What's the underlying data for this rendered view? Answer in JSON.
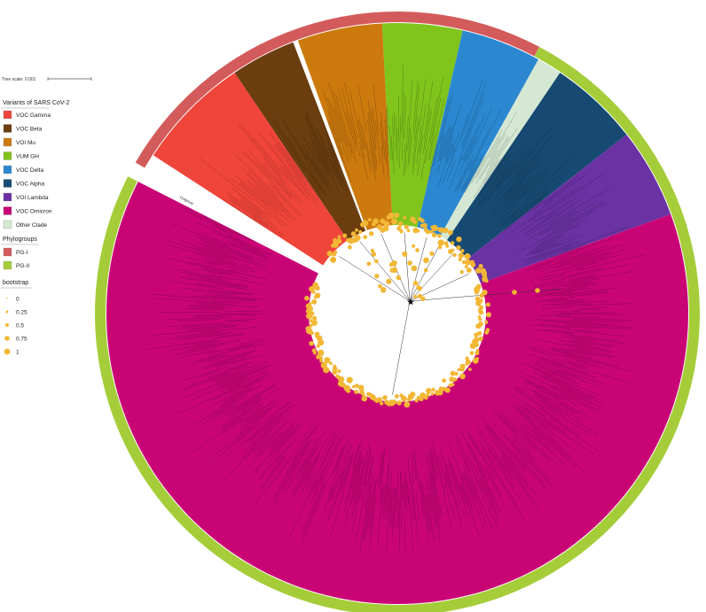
{
  "tree_scale": {
    "label": "Tree scale: 0.001"
  },
  "legend": {
    "variants": {
      "title": "Variants of SARS CoV-2",
      "items": [
        {
          "label": "VOC Gamma",
          "color": "#f0453a"
        },
        {
          "label": "VOC Beta",
          "color": "#6b3d0f"
        },
        {
          "label": "VOI Mu",
          "color": "#cc7a0e"
        },
        {
          "label": "VUM GH",
          "color": "#80c41c"
        },
        {
          "label": "VOC Delta",
          "color": "#2b88d0"
        },
        {
          "label": "VOC Alpha",
          "color": "#174a72"
        },
        {
          "label": "VOI Lambda",
          "color": "#6a32a3"
        },
        {
          "label": "VOC Omicron",
          "color": "#c90576"
        },
        {
          "label": "Other Clade",
          "color": "#d4e8d4"
        }
      ]
    },
    "phylogroups": {
      "title": "Phylogroups",
      "items": [
        {
          "label": "PG-I",
          "color": "#d45b5b"
        },
        {
          "label": "PG-II",
          "color": "#a5cd39"
        }
      ]
    },
    "bootstrap": {
      "title": "bootstrap",
      "color": "#f2b735",
      "items": [
        {
          "label": "0",
          "value": 0
        },
        {
          "label": "0.25",
          "value": 0.25
        },
        {
          "label": "0.5",
          "value": 0.5
        },
        {
          "label": "0.75",
          "value": 0.75
        },
        {
          "label": "1",
          "value": 1
        }
      ]
    }
  },
  "tree": {
    "outgroup_label": "Outgroup",
    "clades": [
      {
        "name": "VOC Gamma",
        "color": "#f0453a",
        "from_deg": -147,
        "to_deg": -124,
        "phylogroup": "PG-I"
      },
      {
        "name": "VOC Beta",
        "color": "#6b3d0f",
        "from_deg": -124,
        "to_deg": -111,
        "phylogroup": "PG-I"
      },
      {
        "name": "VOI Mu",
        "color": "#cc7a0e",
        "from_deg": -110,
        "to_deg": -93,
        "phylogroup": "PG-I"
      },
      {
        "name": "VUM GH",
        "color": "#80c41c",
        "from_deg": -93,
        "to_deg": -77,
        "phylogroup": "PG-I"
      },
      {
        "name": "VOC Delta",
        "color": "#2b88d0",
        "from_deg": -77,
        "to_deg": -61,
        "phylogroup": "PG-I"
      },
      {
        "name": "Other Clade",
        "color": "#d4e8d4",
        "from_deg": -61,
        "to_deg": -56,
        "phylogroup": "PG-II"
      },
      {
        "name": "VOC Alpha",
        "color": "#174a72",
        "from_deg": -56,
        "to_deg": -38,
        "phylogroup": "PG-II"
      },
      {
        "name": "VOI Lambda",
        "color": "#6a32a3",
        "from_deg": -38,
        "to_deg": -20,
        "phylogroup": "PG-II"
      },
      {
        "name": "VOC Omicron",
        "color": "#c90576",
        "from_deg": -20,
        "to_deg": 207,
        "phylogroup": "PG-II"
      }
    ],
    "phylogroup_arcs": [
      {
        "name": "PG-I",
        "color": "#d45b5b",
        "from_deg": -150,
        "to_deg": -62
      },
      {
        "name": "PG-II",
        "color": "#a5cd39",
        "from_deg": -62,
        "to_deg": 207
      }
    ]
  }
}
